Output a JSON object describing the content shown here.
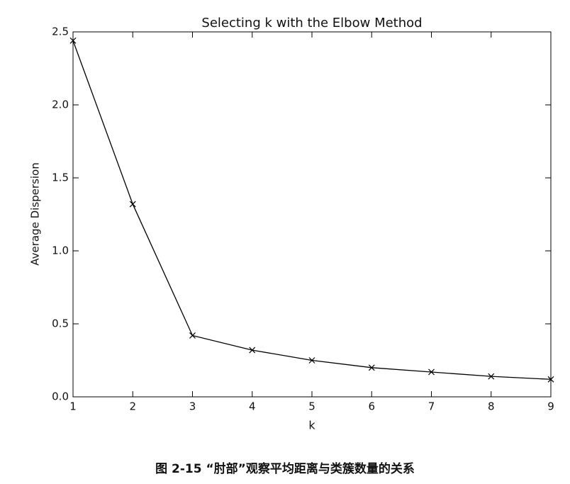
{
  "chart_data": {
    "type": "line",
    "title": "Selecting k with the Elbow Method",
    "x_label": "k",
    "y_label": "Average Dispersion",
    "x": [
      1,
      2,
      3,
      4,
      5,
      6,
      7,
      8,
      9
    ],
    "values": [
      2.44,
      1.32,
      0.42,
      0.32,
      0.25,
      0.2,
      0.17,
      0.14,
      0.12
    ],
    "color": "#000000",
    "marker": "x",
    "xlim": [
      1,
      9
    ],
    "xticks": [
      1,
      2,
      3,
      4,
      5,
      6,
      7,
      8,
      9
    ],
    "ylim": [
      0,
      2.5
    ],
    "yticks": [
      {
        "value": 0,
        "label": "0.0"
      },
      0.5,
      {
        "value": 1,
        "label": "1.0"
      },
      1.5,
      {
        "value": 2,
        "label": "2.0"
      },
      2.5
    ],
    "caption": "图 2-15 “肘部”观察平均距离与类簇数量的关系"
  }
}
